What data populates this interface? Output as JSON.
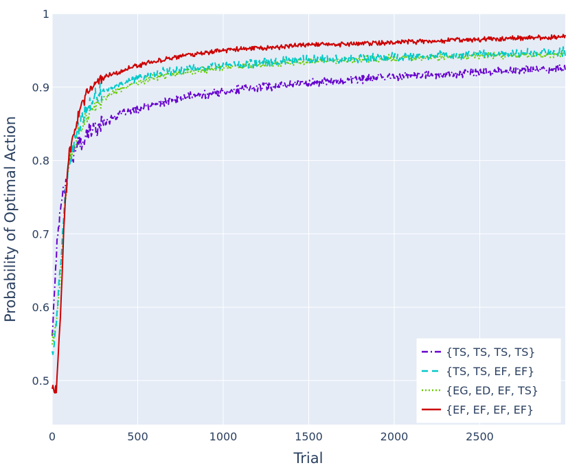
{
  "chart_data": {
    "type": "line",
    "title": "",
    "xlabel": "Trial",
    "ylabel": "Probability of Optimal Action",
    "xlim": [
      0,
      3000
    ],
    "ylim": [
      0.44,
      1.0
    ],
    "xticks": [
      0,
      500,
      1000,
      1500,
      2000,
      2500
    ],
    "xtick_labels": [
      "0",
      "500",
      "1000",
      "1500",
      "2000",
      "2500"
    ],
    "yticks": [
      0.5,
      0.6,
      0.7,
      0.8,
      0.9,
      1.0
    ],
    "ytick_labels": [
      "0.5",
      "0.6",
      "0.7",
      "0.8",
      "0.9",
      "1"
    ],
    "grid": true,
    "background": "#e5ecf6",
    "legend_position": "bottom-right",
    "x": [
      0,
      25,
      50,
      75,
      100,
      150,
      200,
      250,
      300,
      400,
      500,
      600,
      700,
      800,
      1000,
      1250,
      1500,
      1750,
      2000,
      2250,
      2500,
      2750,
      3000
    ],
    "series": [
      {
        "name": "{TS, TS, TS, TS}",
        "color": "#6600cc",
        "dash": "dashdot",
        "noise": 0.007,
        "values": [
          0.56,
          0.68,
          0.74,
          0.77,
          0.8,
          0.82,
          0.835,
          0.845,
          0.852,
          0.863,
          0.87,
          0.876,
          0.882,
          0.887,
          0.894,
          0.901,
          0.906,
          0.91,
          0.914,
          0.917,
          0.92,
          0.923,
          0.926
        ]
      },
      {
        "name": "{TS, TS, EF, EF}",
        "color": "#00c8c8",
        "dash": "dash",
        "noise": 0.007,
        "values": [
          0.54,
          0.58,
          0.66,
          0.75,
          0.8,
          0.84,
          0.87,
          0.885,
          0.895,
          0.905,
          0.912,
          0.918,
          0.922,
          0.925,
          0.93,
          0.934,
          0.937,
          0.939,
          0.941,
          0.943,
          0.945,
          0.946,
          0.948
        ]
      },
      {
        "name": "{EG, ED, EF, TS}",
        "color": "#66cc00",
        "dash": "dot",
        "noise": 0.006,
        "values": [
          0.55,
          0.58,
          0.65,
          0.74,
          0.8,
          0.835,
          0.86,
          0.875,
          0.885,
          0.898,
          0.906,
          0.913,
          0.918,
          0.921,
          0.927,
          0.932,
          0.935,
          0.937,
          0.939,
          0.941,
          0.943,
          0.944,
          0.945
        ]
      },
      {
        "name": "{EF, EF, EF, EF}",
        "color": "#cc0000",
        "dash": "solid",
        "noise": 0.004,
        "values": [
          0.49,
          0.49,
          0.6,
          0.74,
          0.81,
          0.86,
          0.89,
          0.905,
          0.913,
          0.922,
          0.929,
          0.935,
          0.94,
          0.944,
          0.95,
          0.954,
          0.957,
          0.959,
          0.961,
          0.963,
          0.965,
          0.967,
          0.969
        ]
      }
    ]
  }
}
